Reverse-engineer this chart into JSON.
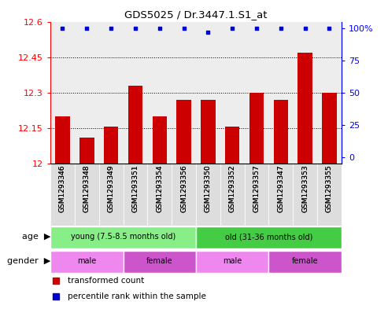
{
  "title": "GDS5025 / Dr.3447.1.S1_at",
  "samples": [
    "GSM1293346",
    "GSM1293348",
    "GSM1293349",
    "GSM1293351",
    "GSM1293354",
    "GSM1293356",
    "GSM1293350",
    "GSM1293352",
    "GSM1293357",
    "GSM1293347",
    "GSM1293353",
    "GSM1293355"
  ],
  "transformed_count": [
    12.2,
    12.11,
    12.155,
    12.33,
    12.2,
    12.27,
    12.27,
    12.155,
    12.3,
    12.27,
    12.47,
    12.3
  ],
  "percentile_rank": [
    100,
    100,
    100,
    100,
    100,
    100,
    97,
    100,
    100,
    100,
    100,
    100
  ],
  "ylim": [
    12.0,
    12.6
  ],
  "yticks_left": [
    12,
    12.15,
    12.3,
    12.45,
    12.6
  ],
  "yticks_right": [
    0,
    25,
    50,
    75,
    100
  ],
  "bar_color": "#cc0000",
  "dot_color": "#0000cc",
  "background_color": "#f0f0f0",
  "age_groups": [
    {
      "label": "young (7.5-8.5 months old)",
      "start": 0,
      "end": 6,
      "color": "#88ee88"
    },
    {
      "label": "old (31-36 months old)",
      "start": 6,
      "end": 12,
      "color": "#44cc44"
    }
  ],
  "gender_groups": [
    {
      "label": "male",
      "start": 0,
      "end": 3,
      "color": "#ee88ee"
    },
    {
      "label": "female",
      "start": 3,
      "end": 6,
      "color": "#cc55cc"
    },
    {
      "label": "male",
      "start": 6,
      "end": 9,
      "color": "#ee88ee"
    },
    {
      "label": "female",
      "start": 9,
      "end": 12,
      "color": "#cc55cc"
    }
  ],
  "legend_items": [
    {
      "label": "transformed count",
      "color": "#cc0000"
    },
    {
      "label": "percentile rank within the sample",
      "color": "#0000cc"
    }
  ]
}
